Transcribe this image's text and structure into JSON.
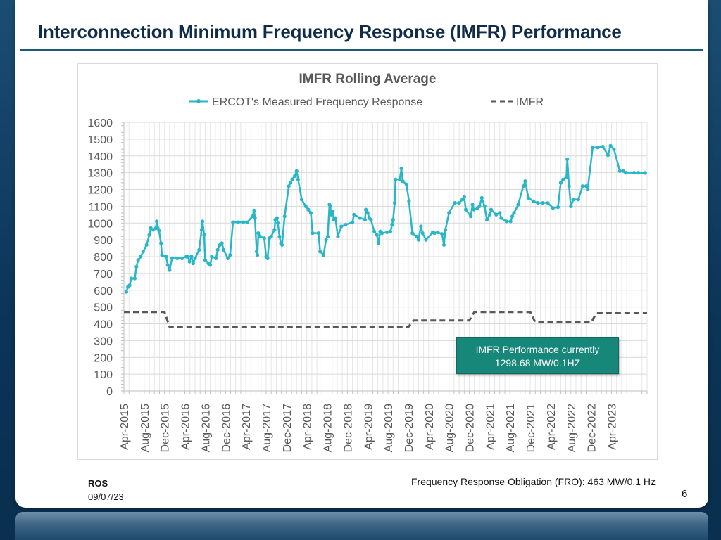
{
  "slide": {
    "title": "Interconnection Minimum Frequency Response (IMFR) Performance",
    "footer_org": "ROS",
    "footer_date": "09/07/23",
    "page_number": "6",
    "fro_note": "Frequency Response Obligation (FRO): 463  MW/0.1 Hz",
    "callout_line1": "IMFR Performance currently",
    "callout_line2": "1298.68 MW/0.1HZ",
    "colors": {
      "slide_bg": "#0b3456",
      "series_line": "#29b6c6",
      "imfr_line": "#595959",
      "callout_bg": "#17877a",
      "title": "#0f2d4a"
    }
  },
  "chart_data": {
    "type": "line",
    "title": "IMFR Rolling Average",
    "xlabel": "",
    "ylabel": "",
    "ylim": [
      0,
      1600
    ],
    "yticks": [
      0,
      100,
      200,
      300,
      400,
      500,
      600,
      700,
      800,
      900,
      1000,
      1100,
      1200,
      1300,
      1400,
      1500,
      1600
    ],
    "x_range": [
      "Apr-2015",
      "Nov-2023"
    ],
    "x_tick_labels": [
      "Apr-2015",
      "Aug-2015",
      "Dec-2015",
      "Apr-2016",
      "Aug-2016",
      "Dec-2016",
      "Apr-2017",
      "Aug-2017",
      "Dec-2017",
      "Apr-2018",
      "Aug-2018",
      "Dec-2018",
      "Apr-2019",
      "Aug-2019",
      "Dec-2019",
      "Apr-2020",
      "Aug-2020",
      "Dec-2020",
      "Apr-2021",
      "Aug-2021",
      "Dec-2021",
      "Apr-2022",
      "Aug-2022",
      "Dec-2022",
      "Apr-2023"
    ],
    "grid": true,
    "legend_position": "top",
    "series": [
      {
        "name": "ERCOT's Measured Frequency Response",
        "style": "solid-with-markers",
        "points": [
          [
            "2015-04-15",
            590
          ],
          [
            "2015-04-25",
            620
          ],
          [
            "2015-05-05",
            630
          ],
          [
            "2015-05-15",
            670
          ],
          [
            "2015-06-05",
            670
          ],
          [
            "2015-06-15",
            740
          ],
          [
            "2015-06-25",
            780
          ],
          [
            "2015-07-10",
            800
          ],
          [
            "2015-07-25",
            830
          ],
          [
            "2015-08-15",
            870
          ],
          [
            "2015-09-01",
            930
          ],
          [
            "2015-09-10",
            970
          ],
          [
            "2015-09-25",
            960
          ],
          [
            "2015-10-10",
            970
          ],
          [
            "2015-10-15",
            1010
          ],
          [
            "2015-10-20",
            970
          ],
          [
            "2015-10-28",
            955
          ],
          [
            "2015-11-10",
            880
          ],
          [
            "2015-11-15",
            810
          ],
          [
            "2015-12-10",
            800
          ],
          [
            "2015-12-20",
            750
          ],
          [
            "2016-01-01",
            720
          ],
          [
            "2016-01-15",
            790
          ],
          [
            "2016-02-15",
            790
          ],
          [
            "2016-03-15",
            790
          ],
          [
            "2016-04-10",
            800
          ],
          [
            "2016-04-20",
            800
          ],
          [
            "2016-04-28",
            770
          ],
          [
            "2016-05-10",
            800
          ],
          [
            "2016-05-20",
            760
          ],
          [
            "2016-06-01",
            790
          ],
          [
            "2016-06-25",
            840
          ],
          [
            "2016-07-10",
            960
          ],
          [
            "2016-07-15",
            1010
          ],
          [
            "2016-07-25",
            930
          ],
          [
            "2016-08-01",
            780
          ],
          [
            "2016-08-20",
            760
          ],
          [
            "2016-09-01",
            750
          ],
          [
            "2016-09-10",
            800
          ],
          [
            "2016-10-05",
            790
          ],
          [
            "2016-10-15",
            840
          ],
          [
            "2016-10-28",
            870
          ],
          [
            "2016-11-10",
            880
          ],
          [
            "2016-11-20",
            840
          ],
          [
            "2016-12-15",
            790
          ],
          [
            "2016-12-28",
            810
          ],
          [
            "2017-01-15",
            1005
          ],
          [
            "2017-02-15",
            1005
          ],
          [
            "2017-03-15",
            1005
          ],
          [
            "2017-04-10",
            1005
          ],
          [
            "2017-05-10",
            1040
          ],
          [
            "2017-05-20",
            1075
          ],
          [
            "2017-05-25",
            1030
          ],
          [
            "2017-06-05",
            830
          ],
          [
            "2017-06-10",
            810
          ],
          [
            "2017-06-15",
            940
          ],
          [
            "2017-06-25",
            920
          ],
          [
            "2017-07-20",
            910
          ],
          [
            "2017-08-01",
            800
          ],
          [
            "2017-08-10",
            790
          ],
          [
            "2017-08-20",
            910
          ],
          [
            "2017-09-01",
            920
          ],
          [
            "2017-09-20",
            960
          ],
          [
            "2017-09-25",
            1020
          ],
          [
            "2017-10-05",
            1030
          ],
          [
            "2017-10-10",
            1000
          ],
          [
            "2017-10-20",
            920
          ],
          [
            "2017-10-28",
            880
          ],
          [
            "2017-11-05",
            870
          ],
          [
            "2017-11-20",
            1040
          ],
          [
            "2017-12-15",
            1220
          ],
          [
            "2017-12-25",
            1240
          ],
          [
            "2018-01-05",
            1260
          ],
          [
            "2018-01-20",
            1280
          ],
          [
            "2018-02-01",
            1310
          ],
          [
            "2018-02-10",
            1260
          ],
          [
            "2018-03-01",
            1140
          ],
          [
            "2018-03-25",
            1100
          ],
          [
            "2018-04-10",
            1080
          ],
          [
            "2018-04-25",
            1060
          ],
          [
            "2018-05-05",
            940
          ],
          [
            "2018-06-10",
            940
          ],
          [
            "2018-06-20",
            830
          ],
          [
            "2018-07-10",
            810
          ],
          [
            "2018-07-25",
            900
          ],
          [
            "2018-08-05",
            920
          ],
          [
            "2018-08-15",
            1110
          ],
          [
            "2018-08-20",
            1100
          ],
          [
            "2018-08-25",
            1050
          ],
          [
            "2018-09-05",
            1070
          ],
          [
            "2018-09-10",
            1020
          ],
          [
            "2018-09-20",
            1030
          ],
          [
            "2018-10-05",
            920
          ],
          [
            "2018-10-25",
            980
          ],
          [
            "2018-11-20",
            990
          ],
          [
            "2019-01-01",
            1005
          ],
          [
            "2019-01-10",
            1050
          ],
          [
            "2019-02-15",
            1030
          ],
          [
            "2019-03-15",
            1020
          ],
          [
            "2019-03-20",
            1080
          ],
          [
            "2019-04-01",
            1060
          ],
          [
            "2019-04-10",
            1030
          ],
          [
            "2019-04-20",
            1020
          ],
          [
            "2019-05-10",
            950
          ],
          [
            "2019-05-25",
            930
          ],
          [
            "2019-06-05",
            880
          ],
          [
            "2019-06-15",
            950
          ],
          [
            "2019-06-25",
            940
          ],
          [
            "2019-07-25",
            945
          ],
          [
            "2019-08-15",
            950
          ],
          [
            "2019-08-25",
            990
          ],
          [
            "2019-09-01",
            1020
          ],
          [
            "2019-09-10",
            1120
          ],
          [
            "2019-09-15",
            1260
          ],
          [
            "2019-10-10",
            1260
          ],
          [
            "2019-10-20",
            1325
          ],
          [
            "2019-10-28",
            1250
          ],
          [
            "2019-11-20",
            1230
          ],
          [
            "2019-12-05",
            1130
          ],
          [
            "2019-12-25",
            940
          ],
          [
            "2020-01-20",
            920
          ],
          [
            "2020-02-01",
            900
          ],
          [
            "2020-02-15",
            980
          ],
          [
            "2020-02-25",
            940
          ],
          [
            "2020-03-15",
            900
          ],
          [
            "2020-04-25",
            945
          ],
          [
            "2020-05-05",
            940
          ],
          [
            "2020-05-25",
            945
          ],
          [
            "2020-06-20",
            935
          ],
          [
            "2020-07-01",
            870
          ],
          [
            "2020-07-10",
            960
          ],
          [
            "2020-08-01",
            1060
          ],
          [
            "2020-09-05",
            1120
          ],
          [
            "2020-10-01",
            1120
          ],
          [
            "2020-10-20",
            1140
          ],
          [
            "2020-11-01",
            1155
          ],
          [
            "2020-11-10",
            1080
          ],
          [
            "2020-12-10",
            1040
          ],
          [
            "2020-12-20",
            1110
          ],
          [
            "2020-12-28",
            1080
          ],
          [
            "2021-01-20",
            1090
          ],
          [
            "2021-02-01",
            1100
          ],
          [
            "2021-02-15",
            1150
          ],
          [
            "2021-03-01",
            1100
          ],
          [
            "2021-03-15",
            1020
          ],
          [
            "2021-04-01",
            1050
          ],
          [
            "2021-04-10",
            1080
          ],
          [
            "2021-05-10",
            1050
          ],
          [
            "2021-06-01",
            1060
          ],
          [
            "2021-06-10",
            1030
          ],
          [
            "2021-07-10",
            1010
          ],
          [
            "2021-08-05",
            1010
          ],
          [
            "2021-08-15",
            1040
          ],
          [
            "2021-08-25",
            1060
          ],
          [
            "2021-09-20",
            1110
          ],
          [
            "2021-10-20",
            1220
          ],
          [
            "2021-11-01",
            1250
          ],
          [
            "2021-11-20",
            1150
          ],
          [
            "2021-12-20",
            1130
          ],
          [
            "2022-01-15",
            1120
          ],
          [
            "2022-02-15",
            1120
          ],
          [
            "2022-03-15",
            1120
          ],
          [
            "2022-04-15",
            1090
          ],
          [
            "2022-05-15",
            1095
          ],
          [
            "2022-06-01",
            1240
          ],
          [
            "2022-06-15",
            1260
          ],
          [
            "2022-07-05",
            1275
          ],
          [
            "2022-07-10",
            1380
          ],
          [
            "2022-07-20",
            1220
          ],
          [
            "2022-08-01",
            1100
          ],
          [
            "2022-08-15",
            1140
          ],
          [
            "2022-09-15",
            1140
          ],
          [
            "2022-10-10",
            1220
          ],
          [
            "2022-11-01",
            1220
          ],
          [
            "2022-11-10",
            1200
          ],
          [
            "2022-12-10",
            1450
          ],
          [
            "2023-01-10",
            1450
          ],
          [
            "2023-02-10",
            1455
          ],
          [
            "2023-03-10",
            1405
          ],
          [
            "2023-03-25",
            1460
          ],
          [
            "2023-04-15",
            1440
          ],
          [
            "2023-05-20",
            1310
          ],
          [
            "2023-06-10",
            1310
          ],
          [
            "2023-06-25",
            1300
          ],
          [
            "2023-08-15",
            1300
          ],
          [
            "2023-09-10",
            1300
          ],
          [
            "2023-10-20",
            1298.68
          ]
        ]
      },
      {
        "name": "IMFR",
        "style": "dashed",
        "points": [
          [
            "2015-04-01",
            470
          ],
          [
            "2015-12-01",
            470
          ],
          [
            "2016-01-01",
            381
          ],
          [
            "2019-12-01",
            381
          ],
          [
            "2020-01-01",
            420
          ],
          [
            "2020-12-01",
            420
          ],
          [
            "2021-01-01",
            470
          ],
          [
            "2021-12-01",
            470
          ],
          [
            "2022-01-01",
            409
          ],
          [
            "2022-12-01",
            409
          ],
          [
            "2023-01-01",
            463
          ],
          [
            "2023-11-01",
            463
          ]
        ]
      }
    ]
  }
}
